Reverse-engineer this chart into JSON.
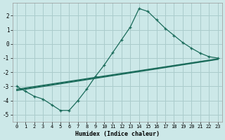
{
  "xlabel": "Humidex (Indice chaleur)",
  "xlim": [
    -0.5,
    23.5
  ],
  "ylim": [
    -5.5,
    2.9
  ],
  "xticks": [
    0,
    1,
    2,
    3,
    4,
    5,
    6,
    7,
    8,
    9,
    10,
    11,
    12,
    13,
    14,
    15,
    16,
    17,
    18,
    19,
    20,
    21,
    22,
    23
  ],
  "yticks": [
    -5,
    -4,
    -3,
    -2,
    -1,
    0,
    1,
    2
  ],
  "bg_color": "#cce8e8",
  "grid_color": "#aacccc",
  "line_color": "#1a6b5a",
  "curve_main_x": [
    0,
    1,
    2,
    3,
    4,
    5,
    6,
    7,
    8,
    9,
    10,
    11,
    12,
    13,
    14,
    15,
    16,
    17,
    18,
    19,
    20,
    21,
    22,
    23
  ],
  "curve_main_y": [
    -3.0,
    -3.35,
    -3.7,
    -3.9,
    -4.3,
    -4.7,
    -4.7,
    -4.0,
    -3.2,
    -2.3,
    -1.5,
    -0.6,
    0.3,
    1.2,
    2.5,
    2.3,
    1.7,
    1.1,
    0.6,
    0.1,
    -0.3,
    -0.65,
    -0.9,
    -1.0
  ],
  "line1_x": [
    0,
    23
  ],
  "line1_y": [
    -3.2,
    -1.05
  ],
  "line2_x": [
    0,
    23
  ],
  "line2_y": [
    -3.3,
    -1.1
  ],
  "line3_x": [
    0,
    23
  ],
  "line3_y": [
    -3.25,
    -1.07
  ]
}
